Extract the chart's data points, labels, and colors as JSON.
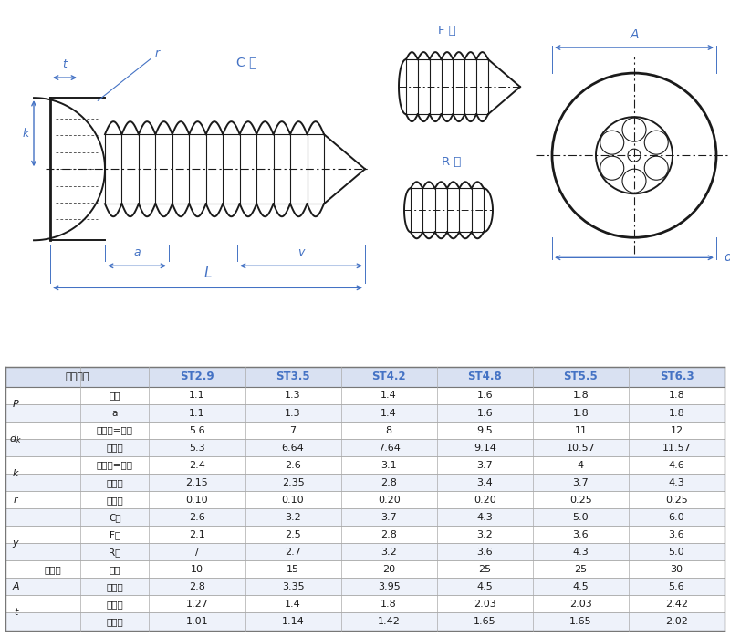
{
  "bg_color": "#f5f7ff",
  "draw_bg": "#f0f4ff",
  "blue": "#4472c4",
  "black": "#1a1a1a",
  "header_row": [
    "螺纹规格",
    "ST2.9",
    "ST3.5",
    "ST4.2",
    "ST4.8",
    "ST5.5",
    "ST6.3"
  ],
  "rows": [
    {
      "p0": "P",
      "p1": "",
      "p2": "螺距",
      "v": [
        "1.1",
        "1.3",
        "1.4",
        "1.6",
        "1.8",
        "1.8"
      ]
    },
    {
      "p0": "",
      "p1": "",
      "p2": "a",
      "v": [
        "1.1",
        "1.3",
        "1.4",
        "1.6",
        "1.8",
        "1.8"
      ]
    },
    {
      "p0": "dk",
      "p1": "",
      "p2": "最大值=公称",
      "v": [
        "5.6",
        "7",
        "8",
        "9.5",
        "11",
        "12"
      ]
    },
    {
      "p0": "",
      "p1": "",
      "p2": "最小值",
      "v": [
        "5.3",
        "6.64",
        "7.64",
        "9.14",
        "10.57",
        "11.57"
      ]
    },
    {
      "p0": "k",
      "p1": "",
      "p2": "最大值=公称",
      "v": [
        "2.4",
        "2.6",
        "3.1",
        "3.7",
        "4",
        "4.6"
      ]
    },
    {
      "p0": "",
      "p1": "",
      "p2": "最小值",
      "v": [
        "2.15",
        "2.35",
        "2.8",
        "3.4",
        "3.7",
        "4.3"
      ]
    },
    {
      "p0": "r",
      "p1": "",
      "p2": "最小值",
      "v": [
        "0.10",
        "0.10",
        "0.20",
        "0.20",
        "0.25",
        "0.25"
      ]
    },
    {
      "p0": "y",
      "p1": "参考值",
      "p2": "C型",
      "v": [
        "2.6",
        "3.2",
        "3.7",
        "4.3",
        "5.0",
        "6.0"
      ]
    },
    {
      "p0": "",
      "p1": "",
      "p2": "F型",
      "v": [
        "2.1",
        "2.5",
        "2.8",
        "3.2",
        "3.6",
        "3.6"
      ]
    },
    {
      "p0": "",
      "p1": "",
      "p2": "R型",
      "v": [
        "/",
        "2.7",
        "3.2",
        "3.6",
        "4.3",
        "5.0"
      ]
    },
    {
      "p0": "",
      "p1": "",
      "p2": "槽号",
      "v": [
        "10",
        "15",
        "20",
        "25",
        "25",
        "30"
      ]
    },
    {
      "p0": "A",
      "p1": "",
      "p2": "参考值",
      "v": [
        "2.8",
        "3.35",
        "3.95",
        "4.5",
        "4.5",
        "5.6"
      ]
    },
    {
      "p0": "t",
      "p1": "",
      "p2": "最大值",
      "v": [
        "1.27",
        "1.4",
        "1.8",
        "2.03",
        "2.03",
        "2.42"
      ]
    },
    {
      "p0": "",
      "p1": "",
      "p2": "最小值",
      "v": [
        "1.01",
        "1.14",
        "1.42",
        "1.65",
        "1.65",
        "2.02"
      ]
    }
  ]
}
